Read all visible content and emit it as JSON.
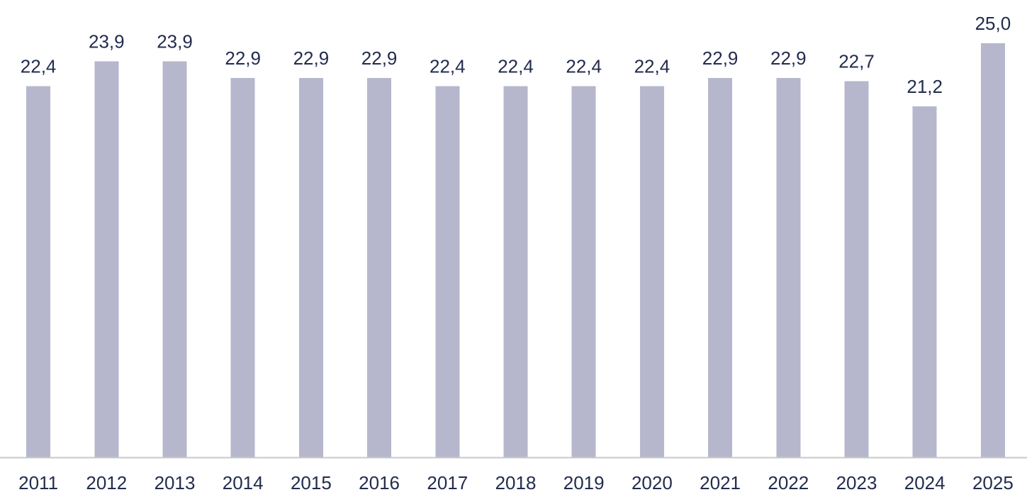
{
  "chart_data": {
    "type": "bar",
    "categories": [
      "2011",
      "2012",
      "2013",
      "2014",
      "2015",
      "2016",
      "2017",
      "2018",
      "2019",
      "2020",
      "2021",
      "2022",
      "2023",
      "2024",
      "2025"
    ],
    "values": [
      22.4,
      23.9,
      23.9,
      22.9,
      22.9,
      22.9,
      22.4,
      22.4,
      22.4,
      22.4,
      22.9,
      22.9,
      22.7,
      21.2,
      25.0
    ],
    "value_labels": [
      "22,4",
      "23,9",
      "23,9",
      "22,9",
      "22,9",
      "22,9",
      "22,4",
      "22,4",
      "22,4",
      "22,4",
      "22,9",
      "22,9",
      "22,7",
      "21,2",
      "25,0"
    ],
    "ylim": [
      0,
      25.0
    ],
    "grid": false,
    "legend": "none"
  },
  "colors": {
    "bar": "#b6b7cc",
    "label_text": "#232c4e",
    "axis": "#c8c8c8"
  }
}
